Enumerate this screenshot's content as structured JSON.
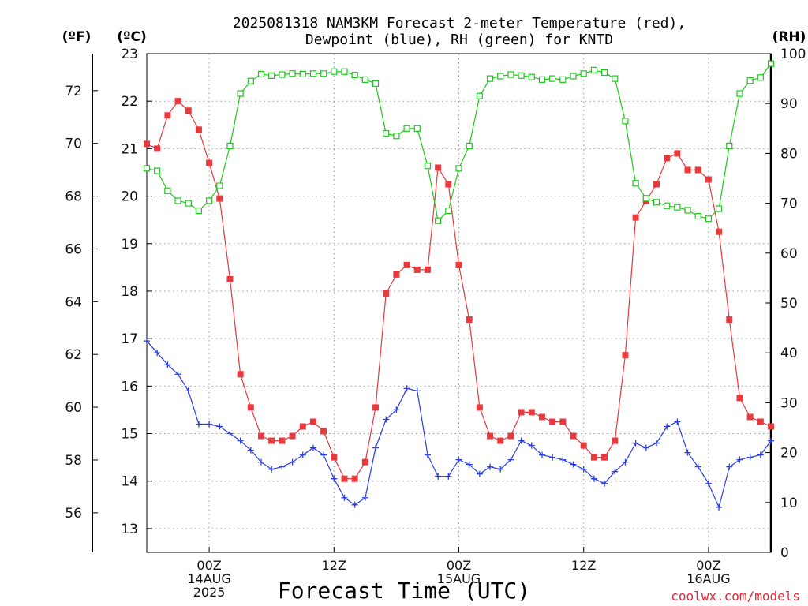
{
  "title_line1": "2025081318 NAM3KM Forecast 2-meter Temperature (red),",
  "title_line2": "Dewpoint (blue), RH (green) for KNTD",
  "units": {
    "left_f": "(ºF)",
    "left_c": "(ºC)",
    "right_rh": "(RH)"
  },
  "xlabel": "Forecast Time (UTC)",
  "credit": "coolwx.com/models",
  "colors": {
    "temperature": "#e8393d",
    "dewpoint": "#2b3ee0",
    "rh": "#1cc81c",
    "grid": "#9a9a9a",
    "credit": "#e0283c"
  },
  "chart_data": {
    "type": "line",
    "title": "2025081318 NAM3KM Forecast 2-meter Temperature (red), Dewpoint (blue), RH (green) for KNTD",
    "xlabel": "Forecast Time (UTC)",
    "x_unit": "forecast hour from 2025-08-13 18Z",
    "x_ticks": [
      {
        "hour": 6,
        "lines": [
          "00Z",
          "14AUG",
          "2025"
        ]
      },
      {
        "hour": 18,
        "lines": [
          "12Z"
        ]
      },
      {
        "hour": 30,
        "lines": [
          "00Z",
          "15AUG"
        ]
      },
      {
        "hour": 42,
        "lines": [
          "12Z"
        ]
      },
      {
        "hour": 54,
        "lines": [
          "00Z",
          "16AUG"
        ]
      }
    ],
    "xlim": [
      0,
      60
    ],
    "y_celsius": {
      "ticks": [
        13,
        14,
        15,
        16,
        17,
        18,
        19,
        20,
        21,
        22,
        23
      ],
      "ylim": [
        12.5,
        23
      ]
    },
    "y_fahrenheit": {
      "ticks": [
        56,
        58,
        60,
        62,
        64,
        66,
        68,
        70,
        72
      ]
    },
    "y_rh": {
      "ticks": [
        0,
        10,
        20,
        30,
        40,
        50,
        60,
        70,
        80,
        90,
        100
      ],
      "ylim": [
        0,
        100
      ]
    },
    "grid": true,
    "series": [
      {
        "name": "Temperature",
        "axis": "celsius",
        "marker": "filled-square",
        "x": [
          0,
          1,
          2,
          3,
          4,
          5,
          6,
          7,
          8,
          9,
          10,
          11,
          12,
          13,
          14,
          15,
          16,
          17,
          18,
          19,
          20,
          21,
          22,
          23,
          24,
          25,
          26,
          27,
          28,
          29,
          30,
          31,
          32,
          33,
          34,
          35,
          36,
          37,
          38,
          39,
          40,
          41,
          42,
          43,
          44,
          45,
          46,
          47,
          48,
          49,
          50,
          51,
          52,
          53,
          54,
          55,
          56,
          57,
          58,
          59,
          60
        ],
        "values": [
          21.1,
          21.0,
          21.7,
          22.0,
          21.8,
          21.4,
          20.7,
          19.95,
          18.25,
          16.25,
          15.55,
          14.95,
          14.85,
          14.85,
          14.95,
          15.15,
          15.25,
          15.05,
          14.5,
          14.05,
          14.05,
          14.4,
          15.55,
          17.95,
          18.35,
          18.55,
          18.45,
          18.45,
          20.6,
          20.25,
          18.55,
          17.4,
          15.55,
          14.95,
          14.85,
          14.95,
          15.45,
          15.45,
          15.35,
          15.25,
          15.25,
          14.95,
          14.75,
          14.5,
          14.5,
          14.85,
          16.65,
          19.55,
          19.9,
          20.25,
          20.8,
          20.9,
          20.55,
          20.55,
          20.35,
          19.25,
          17.4,
          15.75,
          15.35,
          15.25,
          15.15
        ]
      },
      {
        "name": "Dewpoint",
        "axis": "celsius",
        "marker": "plus",
        "x": [
          0,
          1,
          2,
          3,
          4,
          5,
          6,
          7,
          8,
          9,
          10,
          11,
          12,
          13,
          14,
          15,
          16,
          17,
          18,
          19,
          20,
          21,
          22,
          23,
          24,
          25,
          26,
          27,
          28,
          29,
          30,
          31,
          32,
          33,
          34,
          35,
          36,
          37,
          38,
          39,
          40,
          41,
          42,
          43,
          44,
          45,
          46,
          47,
          48,
          49,
          50,
          51,
          52,
          53,
          54,
          55,
          56,
          57,
          58,
          59,
          60
        ],
        "values": [
          16.95,
          16.7,
          16.45,
          16.25,
          15.9,
          15.2,
          15.2,
          15.15,
          15.0,
          14.85,
          14.65,
          14.4,
          14.25,
          14.3,
          14.4,
          14.55,
          14.7,
          14.55,
          14.05,
          13.65,
          13.5,
          13.65,
          14.7,
          15.3,
          15.5,
          15.95,
          15.9,
          14.55,
          14.1,
          14.1,
          14.45,
          14.35,
          14.15,
          14.3,
          14.25,
          14.45,
          14.85,
          14.75,
          14.55,
          14.5,
          14.45,
          14.35,
          14.25,
          14.05,
          13.95,
          14.2,
          14.4,
          14.8,
          14.7,
          14.8,
          15.15,
          15.25,
          14.6,
          14.3,
          13.95,
          13.45,
          14.3,
          14.45,
          14.5,
          14.55,
          14.85
        ]
      },
      {
        "name": "RH",
        "axis": "rh",
        "marker": "open-square",
        "x": [
          0,
          1,
          2,
          3,
          4,
          5,
          6,
          7,
          8,
          9,
          10,
          11,
          12,
          13,
          14,
          15,
          16,
          17,
          18,
          19,
          20,
          21,
          22,
          23,
          24,
          25,
          26,
          27,
          28,
          29,
          30,
          31,
          32,
          33,
          34,
          35,
          36,
          37,
          38,
          39,
          40,
          41,
          42,
          43,
          44,
          45,
          46,
          47,
          48,
          49,
          50,
          51,
          52,
          53,
          54,
          55,
          56,
          57,
          58,
          59,
          60
        ],
        "values": [
          77,
          76.5,
          72.5,
          70.5,
          70,
          68.5,
          70.5,
          73.5,
          81.5,
          92,
          94.5,
          95.9,
          95.6,
          95.8,
          96,
          95.9,
          96,
          96,
          96.4,
          96.4,
          95.7,
          94.8,
          94,
          84,
          83.5,
          85,
          85,
          77.5,
          66.5,
          68.5,
          77,
          81.5,
          91.5,
          95,
          95.5,
          95.8,
          95.6,
          95.3,
          94.8,
          95,
          94.8,
          95.5,
          96,
          96.7,
          96.2,
          95,
          86.5,
          74,
          71,
          70.2,
          69.5,
          69.2,
          68.6,
          67.4,
          66.9,
          68.9,
          81.5,
          92,
          94.6,
          95.2,
          98
        ]
      }
    ]
  }
}
